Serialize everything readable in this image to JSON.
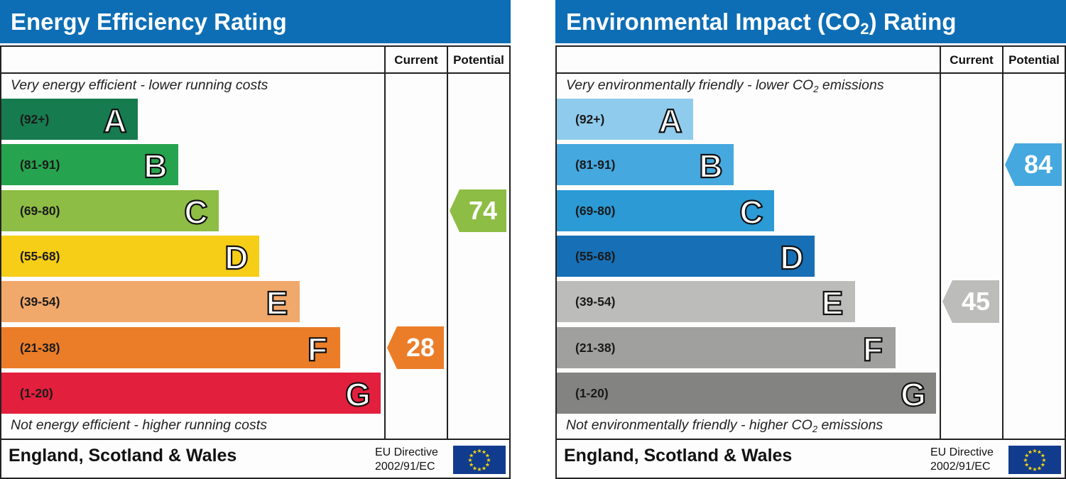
{
  "chart_data": [
    {
      "type": "bar",
      "title": "Energy Efficiency Rating",
      "columns": [
        "Current",
        "Potential"
      ],
      "top_caption": "Very energy efficient - lower running costs",
      "bottom_caption": "Not energy efficient - higher running costs",
      "bands": [
        {
          "letter": "A",
          "range": "(92+)",
          "color": "#167b4f"
        },
        {
          "letter": "B",
          "range": "(81-91)",
          "color": "#26a34e"
        },
        {
          "letter": "C",
          "range": "(69-80)",
          "color": "#8dbd44"
        },
        {
          "letter": "D",
          "range": "(55-68)",
          "color": "#f6cd17"
        },
        {
          "letter": "E",
          "range": "(39-54)",
          "color": "#f1a86b"
        },
        {
          "letter": "F",
          "range": "(21-38)",
          "color": "#eb7d28"
        },
        {
          "letter": "G",
          "range": "(1-20)",
          "color": "#e21f3c"
        }
      ],
      "current": {
        "value": "28",
        "band": "F",
        "color": "#eb7d28"
      },
      "potential": {
        "value": "74",
        "band": "C",
        "color": "#8dbd44"
      },
      "footer": {
        "country": "England, Scotland & Wales",
        "eu_line1": "EU Directive",
        "eu_line2": "2002/91/EC"
      }
    },
    {
      "type": "bar",
      "title": "Environmental Impact (CO",
      "title_sub": "2",
      "title_end": ") Rating",
      "columns": [
        "Current",
        "Potential"
      ],
      "top_caption": "Very environmentally friendly - lower CO",
      "top_caption_sub": "2",
      "top_caption_end": " emissions",
      "bottom_caption": "Not environmentally friendly - higher CO",
      "bottom_caption_sub": "2",
      "bottom_caption_end": " emissions",
      "bands": [
        {
          "letter": "A",
          "range": "(92+)",
          "color": "#8fcbec"
        },
        {
          "letter": "B",
          "range": "(81-91)",
          "color": "#45a8df"
        },
        {
          "letter": "C",
          "range": "(69-80)",
          "color": "#2b9ad5"
        },
        {
          "letter": "D",
          "range": "(55-68)",
          "color": "#176fb5"
        },
        {
          "letter": "E",
          "range": "(39-54)",
          "color": "#bcbcba"
        },
        {
          "letter": "F",
          "range": "(21-38)",
          "color": "#a0a09e"
        },
        {
          "letter": "G",
          "range": "(1-20)",
          "color": "#838381"
        }
      ],
      "current": {
        "value": "45",
        "band": "E",
        "color": "#bcbcba"
      },
      "potential": {
        "value": "84",
        "band": "B",
        "color": "#45a8df"
      },
      "footer": {
        "country": "England, Scotland & Wales",
        "eu_line1": "EU Directive",
        "eu_line2": "2002/91/EC"
      }
    }
  ]
}
